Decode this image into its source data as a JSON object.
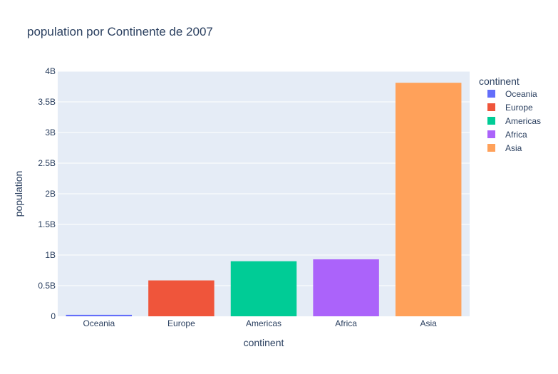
{
  "chart_data": {
    "type": "bar",
    "title": "population por Continente de 2007",
    "xlabel": "continent",
    "ylabel": "population",
    "categories": [
      "Oceania",
      "Europe",
      "Americas",
      "Africa",
      "Asia"
    ],
    "values": [
      24549947,
      586098529,
      898871184,
      929539692,
      3811953827
    ],
    "colors": [
      "#636efa",
      "#EF553B",
      "#00cc96",
      "#ab63fa",
      "#FFA15A"
    ],
    "ylim": [
      0,
      4000000000
    ],
    "yticks": [
      0,
      500000000,
      1000000000,
      1500000000,
      2000000000,
      2500000000,
      3000000000,
      3500000000,
      4000000000
    ],
    "ytick_labels": [
      "0",
      "0.5B",
      "1B",
      "1.5B",
      "2B",
      "2.5B",
      "3B",
      "3.5B",
      "4B"
    ],
    "grid": true,
    "legend": {
      "title": "continent",
      "placement": "right",
      "entries": [
        "Oceania",
        "Europe",
        "Americas",
        "Africa",
        "Asia"
      ]
    },
    "background_color": "#e5ecf6"
  }
}
